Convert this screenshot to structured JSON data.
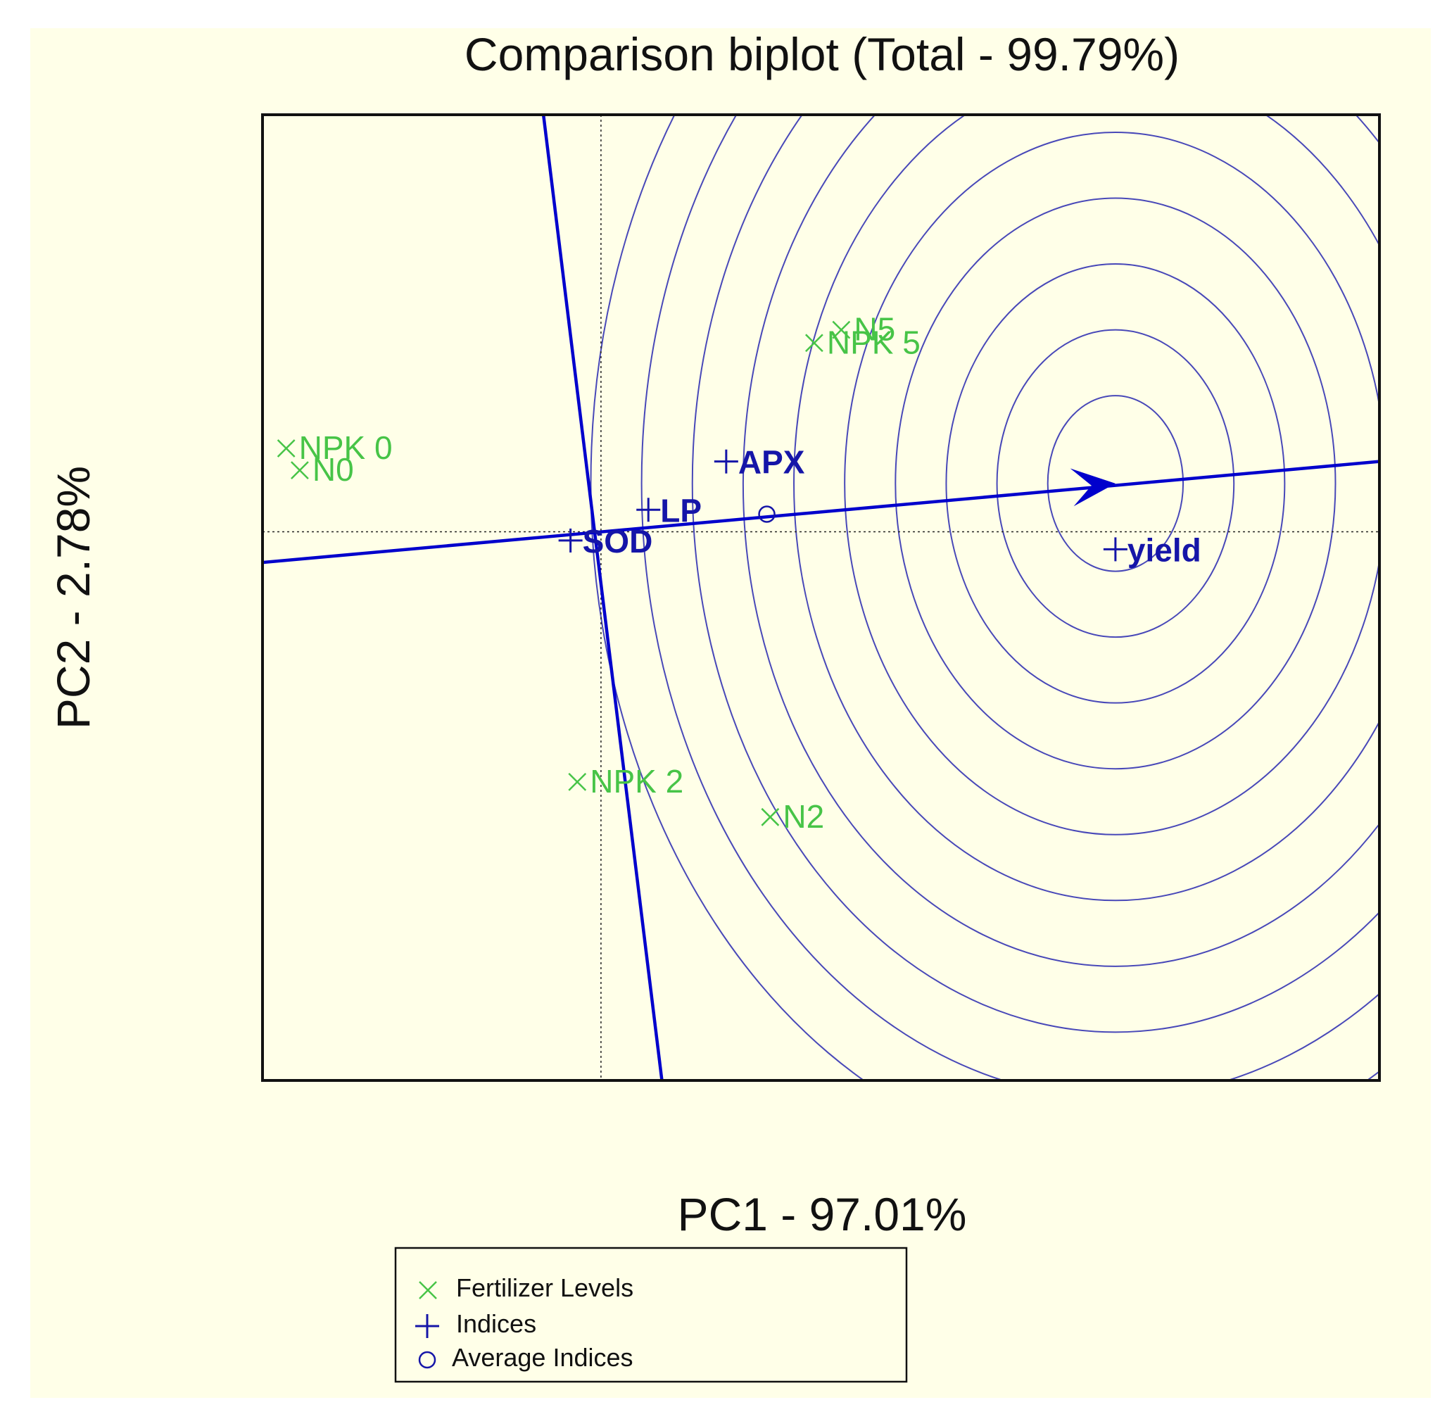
{
  "chart_data": {
    "type": "scatter",
    "title": "Comparison biplot (Total - 99.79%)",
    "xlabel": "PC1 - 97.01%",
    "ylabel": "PC2 - 2.78%",
    "xlim": [
      -1.0,
      2.3
    ],
    "ylim": [
      -1.25,
      0.95
    ],
    "grid": false,
    "legend_placement": "bottom-center",
    "colors": {
      "background": "#ffffe8",
      "fertilizer": "#47c447",
      "index": "#1515a8",
      "axis_line": "#0000cc",
      "circle": "#4848b8",
      "frame": "#111111",
      "reference_line": "#222222"
    },
    "fertilizer_levels": [
      {
        "label": "NPK 0",
        "x": -0.93,
        "y": 0.19
      },
      {
        "label": "N0",
        "x": -0.89,
        "y": 0.14
      },
      {
        "label": "N5",
        "x": 0.71,
        "y": 0.46
      },
      {
        "label": "NPK 5",
        "x": 0.63,
        "y": 0.43
      },
      {
        "label": "NPK 2",
        "x": -0.07,
        "y": -0.57
      },
      {
        "label": "N2",
        "x": 0.5,
        "y": -0.65
      }
    ],
    "indices": [
      {
        "label": "APX",
        "x": 0.37,
        "y": 0.16
      },
      {
        "label": "LP",
        "x": 0.14,
        "y": 0.05
      },
      {
        "label": "SOD",
        "x": -0.09,
        "y": -0.02
      },
      {
        "label": "yield",
        "x": 1.52,
        "y": -0.04
      }
    ],
    "average_indices": {
      "x": 0.49,
      "y": 0.04
    },
    "average_axis": {
      "from": [
        -1.0,
        -0.07
      ],
      "to": [
        2.3,
        0.16
      ],
      "arrow_tip": [
        1.52,
        0.11
      ]
    },
    "perpendicular_axis": {
      "from": [
        -0.17,
        0.95
      ],
      "to": [
        0.18,
        -1.25
      ]
    },
    "circles": {
      "center": [
        1.52,
        0.11
      ],
      "radii": [
        0.2,
        0.35,
        0.5,
        0.65,
        0.8,
        0.95,
        1.1,
        1.25,
        1.4,
        1.55
      ]
    },
    "legend": [
      {
        "label": "Fertilizer Levels",
        "marker": "cross-x"
      },
      {
        "label": "Indices",
        "marker": "plus"
      },
      {
        "label": "Average Indices",
        "marker": "circle"
      }
    ]
  }
}
